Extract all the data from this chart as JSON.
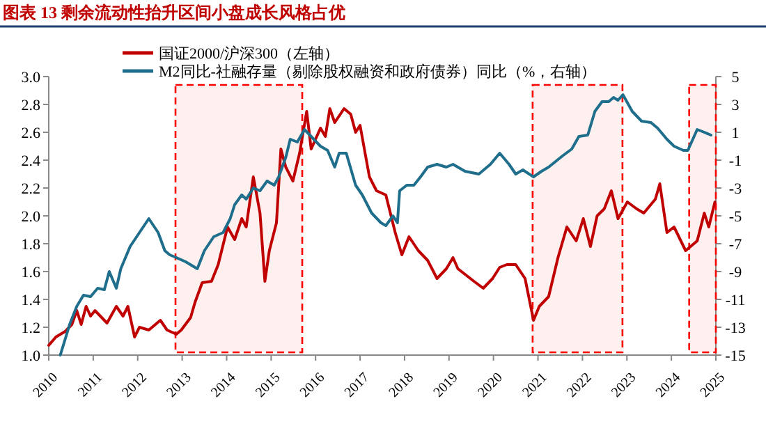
{
  "chart_data": {
    "type": "line",
    "title": "图表 13   剩余流动性抬升区间小盘成长风格占优",
    "legend": "top",
    "grid": false,
    "xlim": [
      2010,
      2025
    ],
    "xticks": [
      2010,
      2011,
      2012,
      2013,
      2014,
      2015,
      2016,
      2017,
      2018,
      2019,
      2020,
      2021,
      2022,
      2023,
      2024,
      2025
    ],
    "ylim": [
      1.0,
      3.0
    ],
    "yticks": [
      {
        "value": 1,
        "label": "1.0"
      },
      {
        "value": 1.2,
        "label": "1.2"
      },
      {
        "value": 1.4,
        "label": "1.4"
      },
      {
        "value": 1.6,
        "label": "1.6"
      },
      {
        "value": 1.8,
        "label": "1.8"
      },
      {
        "value": 2,
        "label": "2.0"
      },
      {
        "value": 2.2,
        "label": "2.2"
      },
      {
        "value": 2.4,
        "label": "2.4"
      },
      {
        "value": 2.6,
        "label": "2.6"
      },
      {
        "value": 2.8,
        "label": "2.8"
      },
      {
        "value": 3,
        "label": "3.0"
      }
    ],
    "y2lim": [
      -15,
      5
    ],
    "y2ticks": [
      -15,
      -13,
      -11,
      -9,
      -7,
      -5,
      -3,
      -1,
      1,
      3,
      5
    ],
    "bands": [
      {
        "axis": "x",
        "from": 2012.85,
        "to": 2015.7,
        "color": "#ff0000"
      },
      {
        "axis": "x",
        "from": 2020.88,
        "to": 2022.9,
        "color": "#ff0000"
      },
      {
        "axis": "x",
        "from": 2024.4,
        "to": 2025.0,
        "color": "#ff0000"
      }
    ],
    "series": [
      {
        "name": "国证2000/沪深300（左轴）",
        "color": "#c00000",
        "x": [
          2010.0,
          2010.16,
          2010.37,
          2010.52,
          2010.63,
          2010.73,
          2010.84,
          2010.94,
          2011.04,
          2011.31,
          2011.52,
          2011.67,
          2011.78,
          2011.93,
          2012.04,
          2012.25,
          2012.51,
          2012.66,
          2012.87,
          2012.98,
          2013.19,
          2013.29,
          2013.45,
          2013.66,
          2013.81,
          2014.02,
          2014.18,
          2014.34,
          2014.44,
          2014.6,
          2014.75,
          2014.86,
          2014.96,
          2015.12,
          2015.22,
          2015.33,
          2015.49,
          2015.64,
          2015.8,
          2015.9,
          2016.11,
          2016.22,
          2016.32,
          2016.43,
          2016.64,
          2016.79,
          2016.9,
          2017.0,
          2017.21,
          2017.37,
          2017.58,
          2017.79,
          2017.94,
          2018.1,
          2018.31,
          2018.52,
          2018.73,
          2018.94,
          2019.09,
          2019.2,
          2019.36,
          2019.56,
          2019.77,
          2019.98,
          2020.14,
          2020.3,
          2020.5,
          2020.71,
          2020.9,
          2021.03,
          2021.24,
          2021.45,
          2021.65,
          2021.86,
          2022.02,
          2022.18,
          2022.33,
          2022.49,
          2022.65,
          2022.8,
          2023.01,
          2023.22,
          2023.38,
          2023.64,
          2023.74,
          2023.9,
          2024.06,
          2024.32,
          2024.58,
          2024.74,
          2024.84,
          2024.98
        ],
        "values": [
          1.07,
          1.13,
          1.17,
          1.22,
          1.32,
          1.22,
          1.35,
          1.28,
          1.32,
          1.23,
          1.35,
          1.28,
          1.35,
          1.13,
          1.2,
          1.18,
          1.25,
          1.18,
          1.15,
          1.18,
          1.27,
          1.38,
          1.52,
          1.53,
          1.65,
          1.92,
          1.83,
          1.98,
          1.92,
          2.28,
          2.02,
          1.53,
          1.75,
          1.95,
          2.48,
          2.35,
          2.25,
          2.45,
          2.75,
          2.48,
          2.63,
          2.57,
          2.77,
          2.67,
          2.77,
          2.73,
          2.6,
          2.65,
          2.28,
          2.18,
          2.15,
          1.88,
          1.72,
          1.85,
          1.75,
          1.68,
          1.55,
          1.62,
          1.7,
          1.62,
          1.58,
          1.53,
          1.48,
          1.55,
          1.63,
          1.65,
          1.65,
          1.55,
          1.25,
          1.35,
          1.42,
          1.7,
          1.92,
          1.82,
          1.98,
          1.78,
          2.0,
          2.05,
          2.18,
          1.98,
          2.1,
          2.05,
          2.02,
          2.12,
          2.23,
          1.88,
          1.92,
          1.75,
          1.82,
          2.02,
          1.92,
          2.1
        ]
      },
      {
        "name": "M2同比-社融存量（剔除股权融资和政府债券）同比（%，右轴）",
        "color": "#1f6e8c",
        "axis": "y2",
        "x": [
          2010.26,
          2010.47,
          2010.63,
          2010.78,
          2010.94,
          2011.1,
          2011.25,
          2011.36,
          2011.52,
          2011.62,
          2011.83,
          2012.04,
          2012.25,
          2012.46,
          2012.61,
          2012.72,
          2012.87,
          2013.08,
          2013.34,
          2013.5,
          2013.71,
          2013.92,
          2014.08,
          2014.18,
          2014.34,
          2014.44,
          2014.6,
          2014.75,
          2014.91,
          2015.07,
          2015.17,
          2015.33,
          2015.43,
          2015.59,
          2015.75,
          2015.9,
          2016.11,
          2016.27,
          2016.43,
          2016.53,
          2016.69,
          2016.9,
          2017.05,
          2017.26,
          2017.47,
          2017.58,
          2017.74,
          2017.84,
          2017.89,
          2018.05,
          2018.21,
          2018.36,
          2018.52,
          2018.73,
          2018.94,
          2019.09,
          2019.36,
          2019.67,
          2019.93,
          2020.14,
          2020.35,
          2020.5,
          2020.66,
          2020.9,
          2021.08,
          2021.24,
          2021.55,
          2021.76,
          2021.92,
          2022.12,
          2022.28,
          2022.44,
          2022.59,
          2022.7,
          2022.8,
          2022.91,
          2023.12,
          2023.33,
          2023.54,
          2023.69,
          2023.9,
          2024.06,
          2024.27,
          2024.37,
          2024.58,
          2024.74,
          2024.89
        ],
        "values": [
          -15,
          -12.8,
          -11.5,
          -10.7,
          -10.8,
          -10.2,
          -10.3,
          -9,
          -10.2,
          -8.8,
          -7.2,
          -6.2,
          -5.2,
          -6.2,
          -7.5,
          -7.8,
          -8,
          -8.3,
          -8.8,
          -7.5,
          -6.5,
          -6.2,
          -5.2,
          -4.2,
          -3.5,
          -3.8,
          -3,
          -3.2,
          -2.5,
          -2.8,
          -2.2,
          -0.8,
          0.5,
          0.3,
          1.2,
          0.7,
          0,
          -0.3,
          -1.5,
          -0.5,
          -0.5,
          -2.8,
          -3.5,
          -4.8,
          -5.5,
          -5.7,
          -5,
          -5.5,
          -3.2,
          -2.8,
          -2.8,
          -2.2,
          -1.5,
          -1.3,
          -1.5,
          -1.3,
          -1.8,
          -2,
          -1.3,
          -0.5,
          -1.3,
          -2,
          -1.7,
          -2.2,
          -1.8,
          -1.5,
          -0.7,
          -0.2,
          0.7,
          0.8,
          2.5,
          3.2,
          3.2,
          3.5,
          3.3,
          3.7,
          2.5,
          1.8,
          1.7,
          1.3,
          0.5,
          0,
          -0.3,
          -0.3,
          1.2,
          1,
          0.8
        ]
      }
    ]
  }
}
